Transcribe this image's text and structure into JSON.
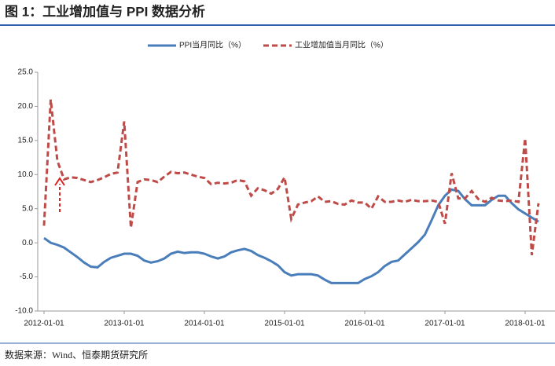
{
  "chart_data": {
    "type": "line",
    "title": "图 1：工业增加值与 PPI 数据分析",
    "source": "数据来源：Wind、恒泰期货研究所",
    "categories": [
      "2012-01-01",
      null,
      null,
      null,
      null,
      null,
      null,
      null,
      null,
      null,
      null,
      null,
      "2013-01-01",
      null,
      null,
      null,
      null,
      null,
      null,
      null,
      null,
      null,
      null,
      null,
      "2014-01-01",
      null,
      null,
      null,
      null,
      null,
      null,
      null,
      null,
      null,
      null,
      null,
      "2015-01-01",
      null,
      null,
      null,
      null,
      null,
      null,
      null,
      null,
      null,
      null,
      null,
      "2016-01-01",
      null,
      null,
      null,
      null,
      null,
      null,
      null,
      null,
      null,
      null,
      null,
      "2017-01-01",
      null,
      null,
      null,
      null,
      null,
      null,
      null,
      null,
      null,
      null,
      null,
      "2018-01-01",
      null,
      null
    ],
    "series": [
      {
        "name": "PPI当月同比（%）",
        "color": "#4a7ebb",
        "dash": false,
        "values": [
          0.7,
          0.0,
          -0.3,
          -0.7,
          -1.4,
          -2.1,
          -2.9,
          -3.5,
          -3.6,
          -2.8,
          -2.2,
          -1.9,
          -1.6,
          -1.6,
          -1.9,
          -2.6,
          -2.9,
          -2.7,
          -2.3,
          -1.6,
          -1.3,
          -1.5,
          -1.4,
          -1.4,
          -1.6,
          -2.0,
          -2.3,
          -2.0,
          -1.4,
          -1.1,
          -0.9,
          -1.2,
          -1.8,
          -2.2,
          -2.7,
          -3.3,
          -4.3,
          -4.8,
          -4.6,
          -4.6,
          -4.6,
          -4.8,
          -5.4,
          -5.9,
          -5.9,
          -5.9,
          -5.9,
          -5.9,
          -5.3,
          -4.9,
          -4.3,
          -3.4,
          -2.8,
          -2.6,
          -1.7,
          -0.8,
          0.1,
          1.2,
          3.3,
          5.5,
          6.9,
          7.8,
          7.6,
          6.4,
          5.5,
          5.5,
          5.5,
          6.3,
          6.9,
          6.9,
          5.8,
          4.9,
          4.3,
          3.7,
          3.1
        ]
      },
      {
        "name": "工业增加值当月同比（%）",
        "color": "#be4b48",
        "dash": true,
        "values": [
          2.5,
          21,
          12,
          9.3,
          9.6,
          9.5,
          9.2,
          8.9,
          9.2,
          9.6,
          10.1,
          10.3,
          17.8,
          2.2,
          8.9,
          9.3,
          9.2,
          8.9,
          9.7,
          10.4,
          10.2,
          10.3,
          10.0,
          9.7,
          9.5,
          8.6,
          8.8,
          8.7,
          8.8,
          9.2,
          9.0,
          6.9,
          8.0,
          7.7,
          7.2,
          7.9,
          9.6,
          3.5,
          5.6,
          5.9,
          6.1,
          6.8,
          6.0,
          6.1,
          5.7,
          5.6,
          6.2,
          5.9,
          5.9,
          5.0,
          6.8,
          6.0,
          6.0,
          6.2,
          6.0,
          6.3,
          6.1,
          6.1,
          6.2,
          6.0,
          2.8,
          10.2,
          6.5,
          6.5,
          7.6,
          6.4,
          6.0,
          6.6,
          6.2,
          6.1,
          6.2,
          6.0,
          15.3,
          -1.8,
          5.8
        ]
      }
    ],
    "ylim": [
      -10,
      25
    ],
    "yticks": [
      {
        "value": -10,
        "label": "-10.0"
      },
      {
        "value": -5,
        "label": "-5.0"
      },
      {
        "value": 0,
        "label": "0.0"
      },
      {
        "value": 5,
        "label": "5.0"
      },
      {
        "value": 10,
        "label": "10.0"
      },
      {
        "value": 15,
        "label": "15.0"
      },
      {
        "value": 20,
        "label": "20.0"
      },
      {
        "value": 25,
        "label": "25.0"
      }
    ],
    "grid": false
  }
}
